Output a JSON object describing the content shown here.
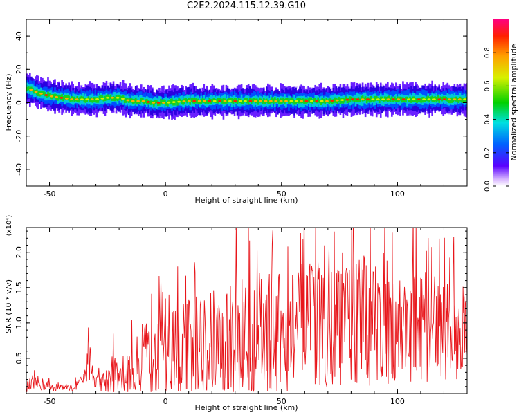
{
  "title": "C2E2.2024.115.12.39.G10",
  "chart_data": [
    {
      "type": "heatmap",
      "xlabel": "Height of straight line (km)",
      "ylabel": "Frequency (Hz)",
      "xlim": [
        -60,
        130
      ],
      "ylim": [
        -50,
        50
      ],
      "xticks": [
        -50,
        0,
        50,
        100
      ],
      "yticks": [
        -40,
        -20,
        0,
        20,
        40
      ],
      "colorbar": {
        "label": "Normalized spectral amplitude",
        "range": [
          0,
          1
        ],
        "ticks": [
          "0.0",
          "0.2",
          "0.4",
          "0.6",
          "0.8"
        ]
      },
      "ridge": {
        "x": [
          -60,
          -55,
          -50,
          -45,
          -40,
          -35,
          -30,
          -25,
          -20,
          -15,
          -10,
          -5,
          0,
          10,
          20,
          30,
          40,
          50,
          60,
          70,
          80,
          90,
          100,
          110,
          120,
          130
        ],
        "frequency_hz": [
          9,
          6,
          4,
          3,
          2,
          2,
          2,
          3,
          3,
          1,
          1,
          0,
          0,
          1,
          1,
          1,
          1,
          1,
          1,
          1,
          2,
          2,
          2,
          2,
          2,
          2
        ]
      }
    },
    {
      "type": "line",
      "xlabel": "Height of straight line (km)",
      "ylabel": "SNR (10 * v/v)",
      "y_multiplier": "(x10⁴)",
      "xlim": [
        -60,
        130
      ],
      "ylim": [
        0,
        2.35
      ],
      "xticks": [
        -50,
        0,
        50,
        100
      ],
      "yticks": [
        "0.5",
        "1.0",
        "1.5",
        "2.0"
      ],
      "ytick_values": [
        0.5,
        1.0,
        1.5,
        2.0
      ],
      "line_color": "#e8161b",
      "series": [
        {
          "x": [
            -60,
            -55,
            -50,
            -45,
            -40,
            -35,
            -33,
            -30,
            -25,
            -22,
            -20,
            -15,
            -10,
            -5,
            0,
            5,
            10,
            20,
            30,
            40,
            50,
            60,
            70,
            80,
            90,
            100,
            110,
            120,
            130
          ],
          "values": [
            0.1,
            0.15,
            0.1,
            0.1,
            0.08,
            0.2,
            0.5,
            0.15,
            0.2,
            0.3,
            0.2,
            0.25,
            0.5,
            0.45,
            0.5,
            0.55,
            0.6,
            0.7,
            0.75,
            0.8,
            0.85,
            0.95,
            1.0,
            1.05,
            1.0,
            0.95,
            0.95,
            0.9,
            0.9
          ],
          "peak_amplitude": [
            0.1,
            0.1,
            0.08,
            0.05,
            0.05,
            0.1,
            0.3,
            0.1,
            0.2,
            0.3,
            0.15,
            0.4,
            0.5,
            0.6,
            0.7,
            0.8,
            0.8,
            0.8,
            0.9,
            0.9,
            0.9,
            0.9,
            0.9,
            1.0,
            0.9,
            0.8,
            0.8,
            0.7,
            0.7
          ]
        }
      ]
    }
  ]
}
